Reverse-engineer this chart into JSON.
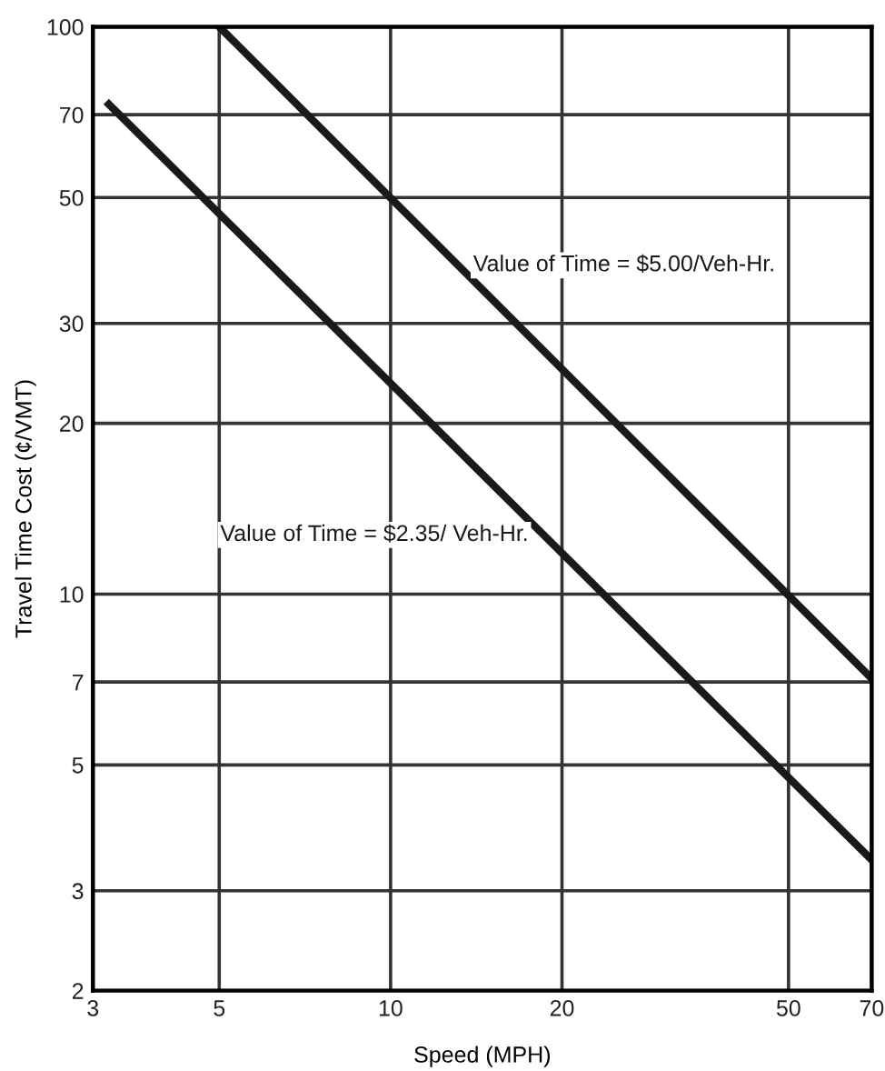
{
  "chart_data": {
    "type": "line",
    "xlabel": "Speed (MPH)",
    "ylabel": "Travel Time Cost (¢/VMT)",
    "log": "xy",
    "grid": true,
    "legend": false,
    "marker": "none",
    "line_style": "solid",
    "xlim": [
      3,
      70
    ],
    "ylim": [
      2,
      100
    ],
    "xticks": [
      3,
      5,
      10,
      20,
      50,
      70
    ],
    "yticks": [
      2,
      3,
      5,
      7,
      10,
      20,
      30,
      50,
      70,
      100
    ],
    "series": [
      {
        "name": "Value of Time = $5.00/Veh-Hr.",
        "color": "#1a1a1a",
        "x": [
          5,
          70
        ],
        "values": [
          100,
          7.1
        ]
      },
      {
        "name": "Value of Time = $2.35/ Veh-Hr.",
        "color": "#1a1a1a",
        "x": [
          3.2,
          70
        ],
        "values": [
          73,
          3.4
        ]
      }
    ]
  }
}
